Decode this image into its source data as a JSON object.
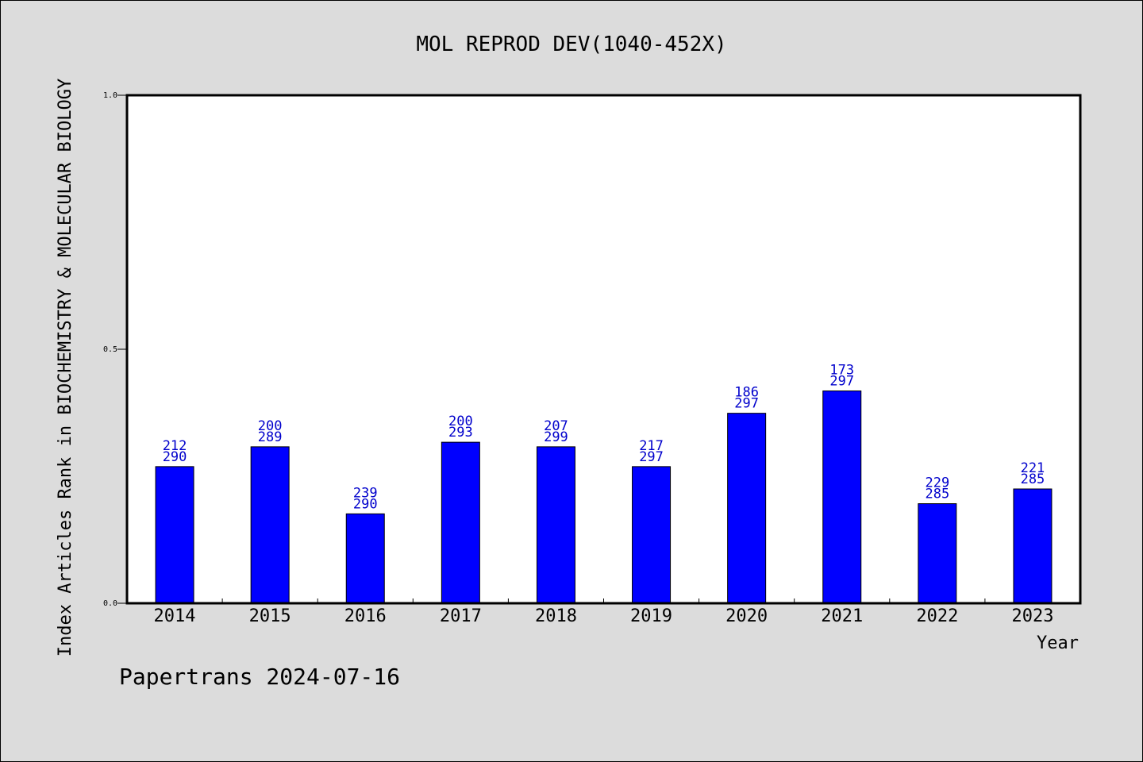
{
  "chart_data": {
    "type": "bar",
    "title": "MOL REPROD DEV(1040-452X)",
    "xlabel": "Year",
    "ylabel": "Index Articles Rank in BIOCHEMISTRY & MOLECULAR BIOLOGY",
    "ylim": [
      0,
      1
    ],
    "yticks": [
      "0.0",
      "0.5",
      "1.0"
    ],
    "yticks_values": [
      0,
      0.5,
      1
    ],
    "grid": false,
    "bar_color": "#0000ff",
    "label_color": "#0000cc",
    "categories": [
      "2014",
      "2015",
      "2016",
      "2017",
      "2018",
      "2019",
      "2020",
      "2021",
      "2022",
      "2023"
    ],
    "values": [
      0.269,
      0.308,
      0.176,
      0.317,
      0.308,
      0.269,
      0.374,
      0.418,
      0.196,
      0.225
    ],
    "labels_top": [
      "212",
      "200",
      "239",
      "200",
      "207",
      "217",
      "186",
      "173",
      "229",
      "221"
    ],
    "labels_bottom": [
      "290",
      "289",
      "290",
      "293",
      "299",
      "297",
      "297",
      "297",
      "285",
      "285"
    ]
  },
  "footer": "Papertrans 2024-07-16"
}
